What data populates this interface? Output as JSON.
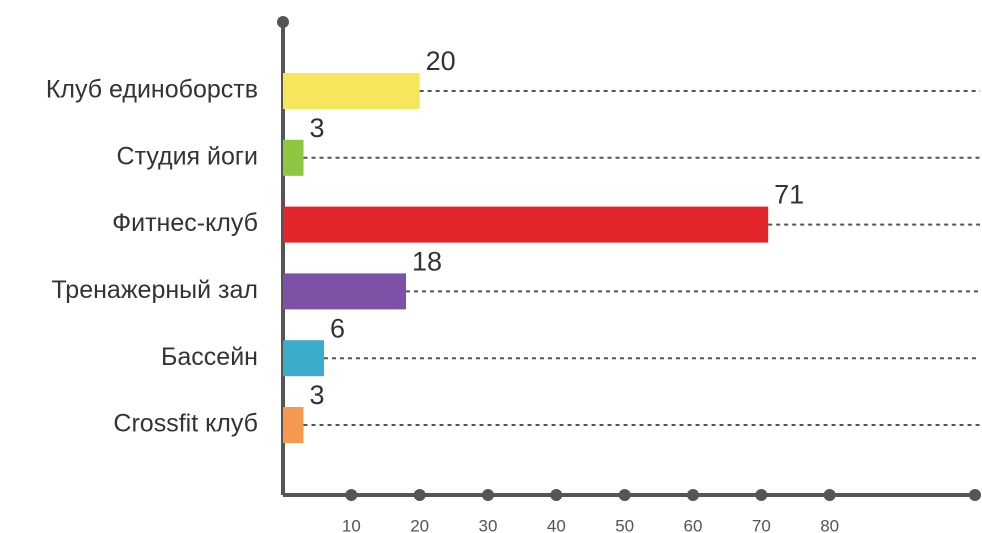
{
  "chart_data": {
    "type": "barh",
    "categories": [
      "Клуб единоборств",
      "Студия йоги",
      "Фитнес-клуб",
      "Тренажерный зал",
      "Бассейн",
      "Crossfit клуб"
    ],
    "values": [
      20,
      3,
      71,
      18,
      6,
      3
    ],
    "colors": [
      "#f5e65c",
      "#8dc63f",
      "#e1252b",
      "#7b52a6",
      "#3badcb",
      "#f5994e"
    ],
    "xlim": [
      0,
      102
    ],
    "xticks": [
      10,
      20,
      30,
      40,
      50,
      60,
      70,
      80
    ],
    "grid": true
  }
}
